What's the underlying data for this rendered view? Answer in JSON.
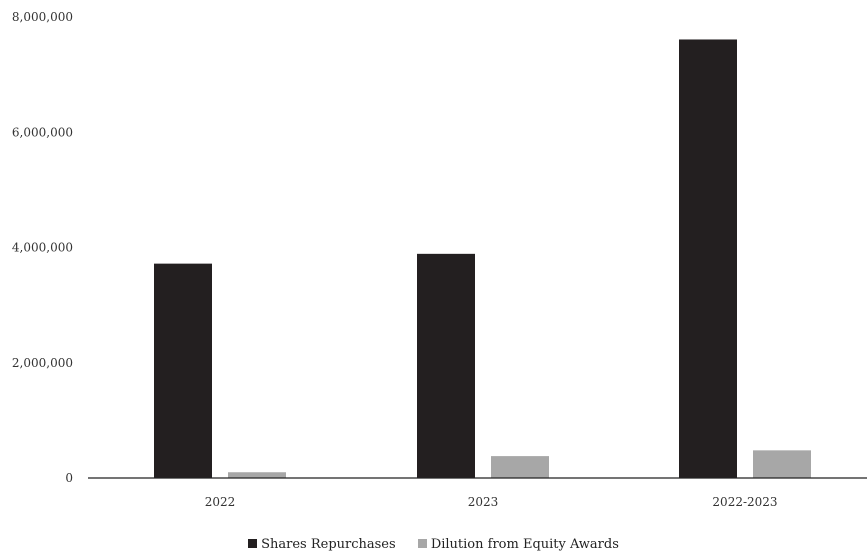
{
  "chart_data": {
    "type": "bar",
    "categories": [
      "2022",
      "2023",
      "2022-2023"
    ],
    "series": [
      {
        "name": "Shares Repurchases",
        "values": [
          3720000,
          3890000,
          7610000
        ],
        "color": "#231f20"
      },
      {
        "name": "Dilution from Equity Awards",
        "values": [
          100000,
          380000,
          480000
        ],
        "color": "#a7a7a7"
      }
    ],
    "y_ticks": [
      "0",
      "2,000,000",
      "4,000,000",
      "6,000,000",
      "8,000,000"
    ],
    "ylim": [
      0,
      8000000
    ],
    "grid": false,
    "legend_position": "bottom-center"
  }
}
